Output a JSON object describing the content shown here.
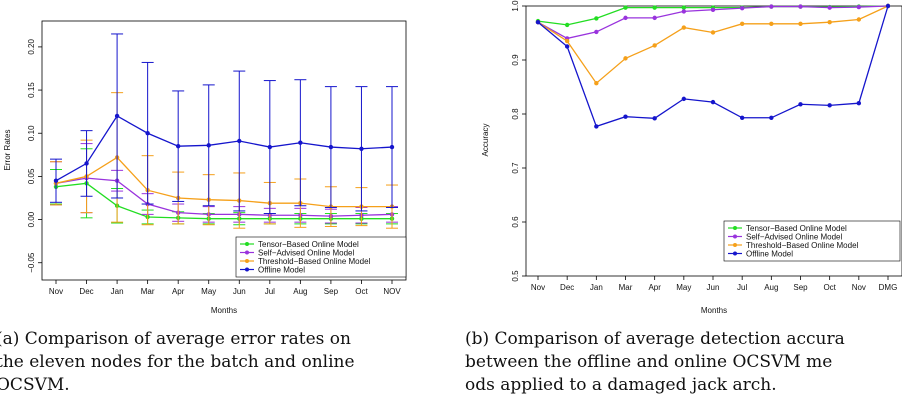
{
  "chart_data": [
    {
      "type": "line",
      "ylabel": "Error Rates",
      "xlabel": "Months",
      "categories": [
        "Nov",
        "Dec",
        "Jan",
        "Mar",
        "Apr",
        "May",
        "Jun",
        "Jul",
        "Aug",
        "Sep",
        "Oct",
        "NOV"
      ],
      "ylim": [
        -0.07,
        0.23
      ],
      "yticks": [
        "−0.05",
        "0.00",
        "0.05",
        "0.10",
        "0.15",
        "0.20"
      ],
      "ytick_values": [
        -0.05,
        0,
        0.05,
        0.1,
        0.15,
        0.2
      ],
      "legend_position": "bottom-right",
      "series": [
        {
          "name": "Tensor−Based Online Model",
          "color": "#22dd22",
          "values": [
            0.038,
            0.042,
            0.016,
            0.003,
            0.002,
            0.001,
            0.001,
            0.001,
            0.001,
            0.001,
            0.001,
            0.001
          ],
          "err": [
            0.02,
            0.04,
            0.02,
            0.008,
            0.007,
            0.006,
            0.007,
            0.006,
            0.006,
            0.006,
            0.006,
            0.006
          ]
        },
        {
          "name": "Self−Advised Online Model",
          "color": "#9933dd",
          "values": [
            0.042,
            0.048,
            0.045,
            0.018,
            0.008,
            0.006,
            0.006,
            0.005,
            0.005,
            0.004,
            0.005,
            0.006
          ],
          "err": [
            0.025,
            0.04,
            0.012,
            0.012,
            0.01,
            0.009,
            0.009,
            0.008,
            0.008,
            0.008,
            0.009,
            0.009
          ]
        },
        {
          "name": "Threshold−Based Online Model",
          "color": "#f5a01a",
          "values": [
            0.042,
            0.05,
            0.072,
            0.034,
            0.025,
            0.023,
            0.022,
            0.019,
            0.019,
            0.015,
            0.015,
            0.015
          ],
          "err": [
            0.025,
            0.042,
            0.075,
            0.04,
            0.03,
            0.029,
            0.032,
            0.024,
            0.028,
            0.023,
            0.022,
            0.025
          ]
        },
        {
          "name": "Offline Model",
          "color": "#1515cc",
          "values": [
            0.045,
            0.065,
            0.12,
            0.1,
            0.085,
            0.086,
            0.091,
            0.084,
            0.089,
            0.084,
            0.082,
            0.084
          ],
          "err": [
            0.025,
            0.038,
            0.095,
            0.082,
            0.064,
            0.07,
            0.081,
            0.077,
            0.073,
            0.07,
            0.072,
            0.07
          ]
        }
      ]
    },
    {
      "type": "line",
      "ylabel": "Accuracy",
      "xlabel": "Months",
      "categories": [
        "Nov",
        "Dec",
        "Jan",
        "Mar",
        "Apr",
        "May",
        "Jun",
        "Jul",
        "Aug",
        "Sep",
        "Oct",
        "Nov",
        "DMG"
      ],
      "ylim": [
        0.5,
        1.0
      ],
      "yticks": [
        "0.5",
        "0.6",
        "0.7",
        "0.8",
        "0.9",
        "1.0"
      ],
      "ytick_values": [
        0.5,
        0.6,
        0.7,
        0.8,
        0.9,
        1.0
      ],
      "legend_position": "bottom-right",
      "series": [
        {
          "name": "Tensor−Based Online Model",
          "color": "#22dd22",
          "values": [
            0.972,
            0.965,
            0.977,
            0.997,
            0.997,
            0.997,
            0.997,
            0.997,
            0.999,
            0.999,
            0.998,
            0.999,
            1.0
          ]
        },
        {
          "name": "Self−Advised Online Model",
          "color": "#9933dd",
          "values": [
            0.97,
            0.94,
            0.952,
            0.978,
            0.978,
            0.99,
            0.993,
            0.996,
            0.999,
            0.999,
            0.997,
            0.998,
            1.0
          ]
        },
        {
          "name": "Threshold−Based Online Model",
          "color": "#f5a01a",
          "values": [
            0.97,
            0.935,
            0.857,
            0.903,
            0.927,
            0.96,
            0.951,
            0.967,
            0.967,
            0.967,
            0.97,
            0.975,
            1.0
          ]
        },
        {
          "name": "Offline Model",
          "color": "#1515cc",
          "values": [
            0.97,
            0.925,
            0.777,
            0.795,
            0.792,
            0.828,
            0.822,
            0.793,
            0.793,
            0.818,
            0.816,
            0.82,
            1.0
          ]
        }
      ]
    }
  ],
  "captions": {
    "a_lines": [
      "(a) Comparison of average error rates on",
      "the eleven nodes for the batch and online",
      "OCSVM."
    ],
    "b_lines": [
      "(b) Comparison of average detection accura",
      "between the offline and online OCSVM me",
      "ods applied to a damaged jack arch."
    ]
  }
}
